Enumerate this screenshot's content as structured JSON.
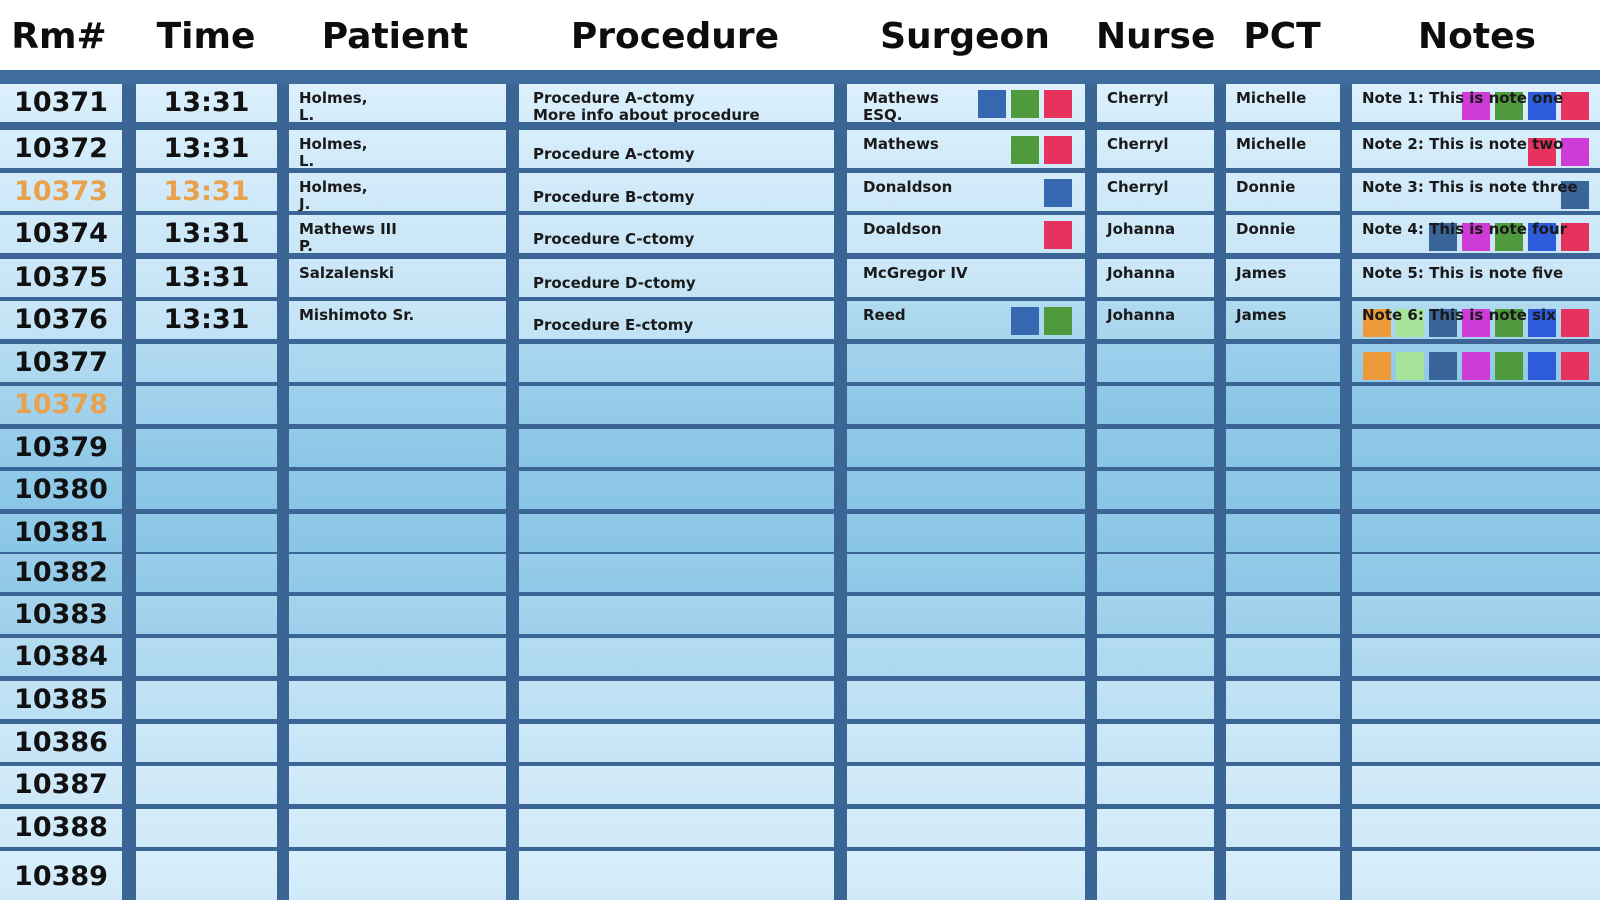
{
  "headers": [
    "Rm#",
    "Time",
    "Patient",
    "Procedure",
    "Surgeon",
    "Nurse",
    "PCT",
    "Notes"
  ],
  "colors": {
    "blue_dark": "#3568b0",
    "green": "#4f9a3c",
    "red": "#e8325e",
    "magenta": "#cf3bd6",
    "royal_blue": "#2d5bdc",
    "steel_blue": "#39659a",
    "orange": "#ee9a3a",
    "light_green": "#a7e39a",
    "highlight_orange": "#e8a14c"
  },
  "rows": [
    {
      "room": "10371",
      "time": "13:31",
      "patient": [
        "Holmes,",
        "L."
      ],
      "procedure": [
        "Procedure A-ctomy",
        "More info about procedure"
      ],
      "surgeon": [
        "Mathews",
        "ESQ."
      ],
      "surgeon_tags": [
        "blue_dark",
        "green",
        "red"
      ],
      "nurse": "Cherryl",
      "pct": "Michelle",
      "note": "Note 1: This is note one",
      "note_tags": [
        "magenta",
        "green",
        "royal_blue",
        "red"
      ],
      "highlight": false
    },
    {
      "room": "10372",
      "time": "13:31",
      "patient": [
        "Holmes,",
        "L."
      ],
      "procedure": [
        "Procedure A-ctomy"
      ],
      "surgeon": [
        "Mathews"
      ],
      "surgeon_tags": [
        "green",
        "red"
      ],
      "nurse": "Cherryl",
      "pct": "Michelle",
      "note": "Note 2: This is note two",
      "note_tags": [
        "red",
        "magenta"
      ],
      "highlight": false
    },
    {
      "room": "10373",
      "time": "13:31",
      "patient": [
        "Holmes,",
        "J."
      ],
      "procedure": [
        "Procedure B-ctomy"
      ],
      "surgeon": [
        "Donaldson"
      ],
      "surgeon_tags": [
        "blue_dark"
      ],
      "nurse": "Cherryl",
      "pct": "Donnie",
      "note": "Note 3: This is note three",
      "note_tags": [
        "steel_blue"
      ],
      "highlight": true
    },
    {
      "room": "10374",
      "time": "13:31",
      "patient": [
        "Mathews III",
        "P."
      ],
      "procedure": [
        "Procedure C-ctomy"
      ],
      "surgeon": [
        "Doaldson"
      ],
      "surgeon_tags": [
        "red"
      ],
      "nurse": "Johanna",
      "pct": "Donnie",
      "note": "Note 4: This is note four",
      "note_tags": [
        "steel_blue",
        "magenta",
        "green",
        "royal_blue",
        "red"
      ],
      "highlight": false
    },
    {
      "room": "10375",
      "time": "13:31",
      "patient": [
        "Salzalenski"
      ],
      "procedure": [
        "Procedure D-ctomy"
      ],
      "surgeon": [
        "McGregor IV"
      ],
      "surgeon_tags": [],
      "nurse": "Johanna",
      "pct": "James",
      "note": "Note 5: This is note five",
      "note_tags": [],
      "highlight": false
    },
    {
      "room": "10376",
      "time": "13:31",
      "patient": [
        "Mishimoto Sr."
      ],
      "procedure": [
        "Procedure E-ctomy"
      ],
      "surgeon": [
        "Reed"
      ],
      "surgeon_tags": [
        "blue_dark",
        "green"
      ],
      "nurse": "Johanna",
      "pct": "James",
      "note": "Note 6: This is note six",
      "note_tags": [
        "orange",
        "light_green",
        "steel_blue",
        "magenta",
        "green",
        "royal_blue",
        "red"
      ],
      "highlight": false
    },
    {
      "room": "10377",
      "time": "",
      "patient": [],
      "procedure": [],
      "surgeon": [],
      "surgeon_tags": [],
      "nurse": "",
      "pct": "",
      "note": "",
      "note_tags": [
        "orange",
        "light_green",
        "steel_blue",
        "magenta",
        "green",
        "royal_blue",
        "red"
      ],
      "highlight": false
    },
    {
      "room": "10378",
      "time": "",
      "patient": [],
      "procedure": [],
      "surgeon": [],
      "surgeon_tags": [],
      "nurse": "",
      "pct": "",
      "note": "",
      "note_tags": [],
      "highlight": true
    },
    {
      "room": "10379",
      "time": "",
      "patient": [],
      "procedure": [],
      "surgeon": [],
      "surgeon_tags": [],
      "nurse": "",
      "pct": "",
      "note": "",
      "note_tags": [],
      "highlight": false
    },
    {
      "room": "10380",
      "time": "",
      "patient": [],
      "procedure": [],
      "surgeon": [],
      "surgeon_tags": [],
      "nurse": "",
      "pct": "",
      "note": "",
      "note_tags": [],
      "highlight": false
    },
    {
      "room": "10381",
      "time": "",
      "patient": [],
      "procedure": [],
      "surgeon": [],
      "surgeon_tags": [],
      "nurse": "",
      "pct": "",
      "note": "",
      "note_tags": [],
      "highlight": false
    },
    {
      "room": "10382",
      "time": "",
      "patient": [],
      "procedure": [],
      "surgeon": [],
      "surgeon_tags": [],
      "nurse": "",
      "pct": "",
      "note": "",
      "note_tags": [],
      "highlight": false
    },
    {
      "room": "10383",
      "time": "",
      "patient": [],
      "procedure": [],
      "surgeon": [],
      "surgeon_tags": [],
      "nurse": "",
      "pct": "",
      "note": "",
      "note_tags": [],
      "highlight": false
    },
    {
      "room": "10384",
      "time": "",
      "patient": [],
      "procedure": [],
      "surgeon": [],
      "surgeon_tags": [],
      "nurse": "",
      "pct": "",
      "note": "",
      "note_tags": [],
      "highlight": false
    },
    {
      "room": "10385",
      "time": "",
      "patient": [],
      "procedure": [],
      "surgeon": [],
      "surgeon_tags": [],
      "nurse": "",
      "pct": "",
      "note": "",
      "note_tags": [],
      "highlight": false
    },
    {
      "room": "10386",
      "time": "",
      "patient": [],
      "procedure": [],
      "surgeon": [],
      "surgeon_tags": [],
      "nurse": "",
      "pct": "",
      "note": "",
      "note_tags": [],
      "highlight": false
    },
    {
      "room": "10387",
      "time": "",
      "patient": [],
      "procedure": [],
      "surgeon": [],
      "surgeon_tags": [],
      "nurse": "",
      "pct": "",
      "note": "",
      "note_tags": [],
      "highlight": false
    },
    {
      "room": "10388",
      "time": "",
      "patient": [],
      "procedure": [],
      "surgeon": [],
      "surgeon_tags": [],
      "nurse": "",
      "pct": "",
      "note": "",
      "note_tags": [],
      "highlight": false
    },
    {
      "room": "10389",
      "time": "",
      "patient": [],
      "procedure": [],
      "surgeon": [],
      "surgeon_tags": [],
      "nurse": "",
      "pct": "",
      "note": "",
      "note_tags": [],
      "highlight": false
    }
  ]
}
